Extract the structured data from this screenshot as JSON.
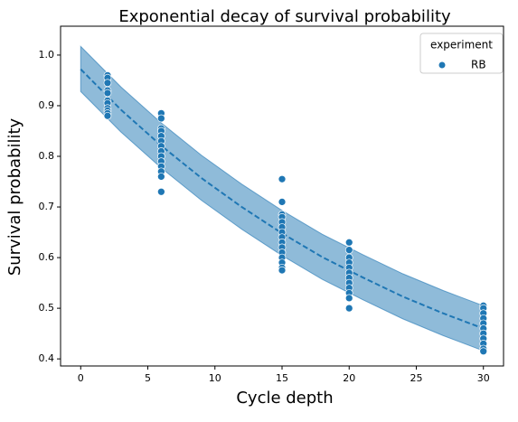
{
  "chart_data": {
    "type": "scatter",
    "title": "Exponential decay of survival probability",
    "x_label": "Cycle depth",
    "y_label": "Survival probability",
    "legend_title": "experiment",
    "legend_position": "upper right",
    "xlim": [
      -1.5,
      31.5
    ],
    "ylim": [
      0.386,
      1.057
    ],
    "xticks": [
      0,
      5,
      10,
      15,
      20,
      25,
      30
    ],
    "yticks": [
      0.4,
      0.5,
      0.6,
      0.7,
      0.8,
      0.9,
      {
        "value": 1,
        "label": "1.0"
      }
    ],
    "series": [
      {
        "name": "RB",
        "color": "#1f77b4",
        "x": [
          2,
          2,
          2,
          2,
          2,
          2,
          2,
          2,
          2,
          2,
          2,
          6,
          6,
          6,
          6,
          6,
          6,
          6,
          6,
          6,
          6,
          6,
          6,
          6,
          6,
          15,
          15,
          15,
          15,
          15,
          15,
          15,
          15,
          15,
          15,
          15,
          15,
          15,
          15,
          15,
          20,
          20,
          20,
          20,
          20,
          20,
          20,
          20,
          20,
          20,
          20,
          20,
          30,
          30,
          30,
          30,
          30,
          30,
          30,
          30,
          30,
          30,
          30
        ],
        "values": [
          0.96,
          0.955,
          0.945,
          0.93,
          0.925,
          0.91,
          0.905,
          0.895,
          0.89,
          0.885,
          0.88,
          0.885,
          0.875,
          0.855,
          0.85,
          0.84,
          0.83,
          0.82,
          0.81,
          0.8,
          0.79,
          0.78,
          0.77,
          0.76,
          0.73,
          0.755,
          0.71,
          0.685,
          0.68,
          0.67,
          0.66,
          0.65,
          0.64,
          0.63,
          0.62,
          0.61,
          0.6,
          0.59,
          0.58,
          0.575,
          0.63,
          0.615,
          0.6,
          0.59,
          0.58,
          0.57,
          0.56,
          0.55,
          0.54,
          0.53,
          0.52,
          0.5,
          0.505,
          0.5,
          0.49,
          0.48,
          0.47,
          0.46,
          0.45,
          0.44,
          0.43,
          0.42,
          0.415
        ]
      }
    ],
    "fit": {
      "color": "#1f77b4",
      "x": [
        0,
        3,
        6,
        9,
        12,
        15,
        18,
        21,
        24,
        27,
        30
      ],
      "values": [
        0.972,
        0.892,
        0.821,
        0.757,
        0.7,
        0.648,
        0.601,
        0.561,
        0.523,
        0.49,
        0.46
      ],
      "upper": [
        1.017,
        0.937,
        0.866,
        0.802,
        0.745,
        0.693,
        0.646,
        0.606,
        0.568,
        0.535,
        0.505
      ],
      "lower": [
        0.928,
        0.848,
        0.777,
        0.713,
        0.656,
        0.604,
        0.557,
        0.517,
        0.479,
        0.446,
        0.416
      ]
    }
  }
}
